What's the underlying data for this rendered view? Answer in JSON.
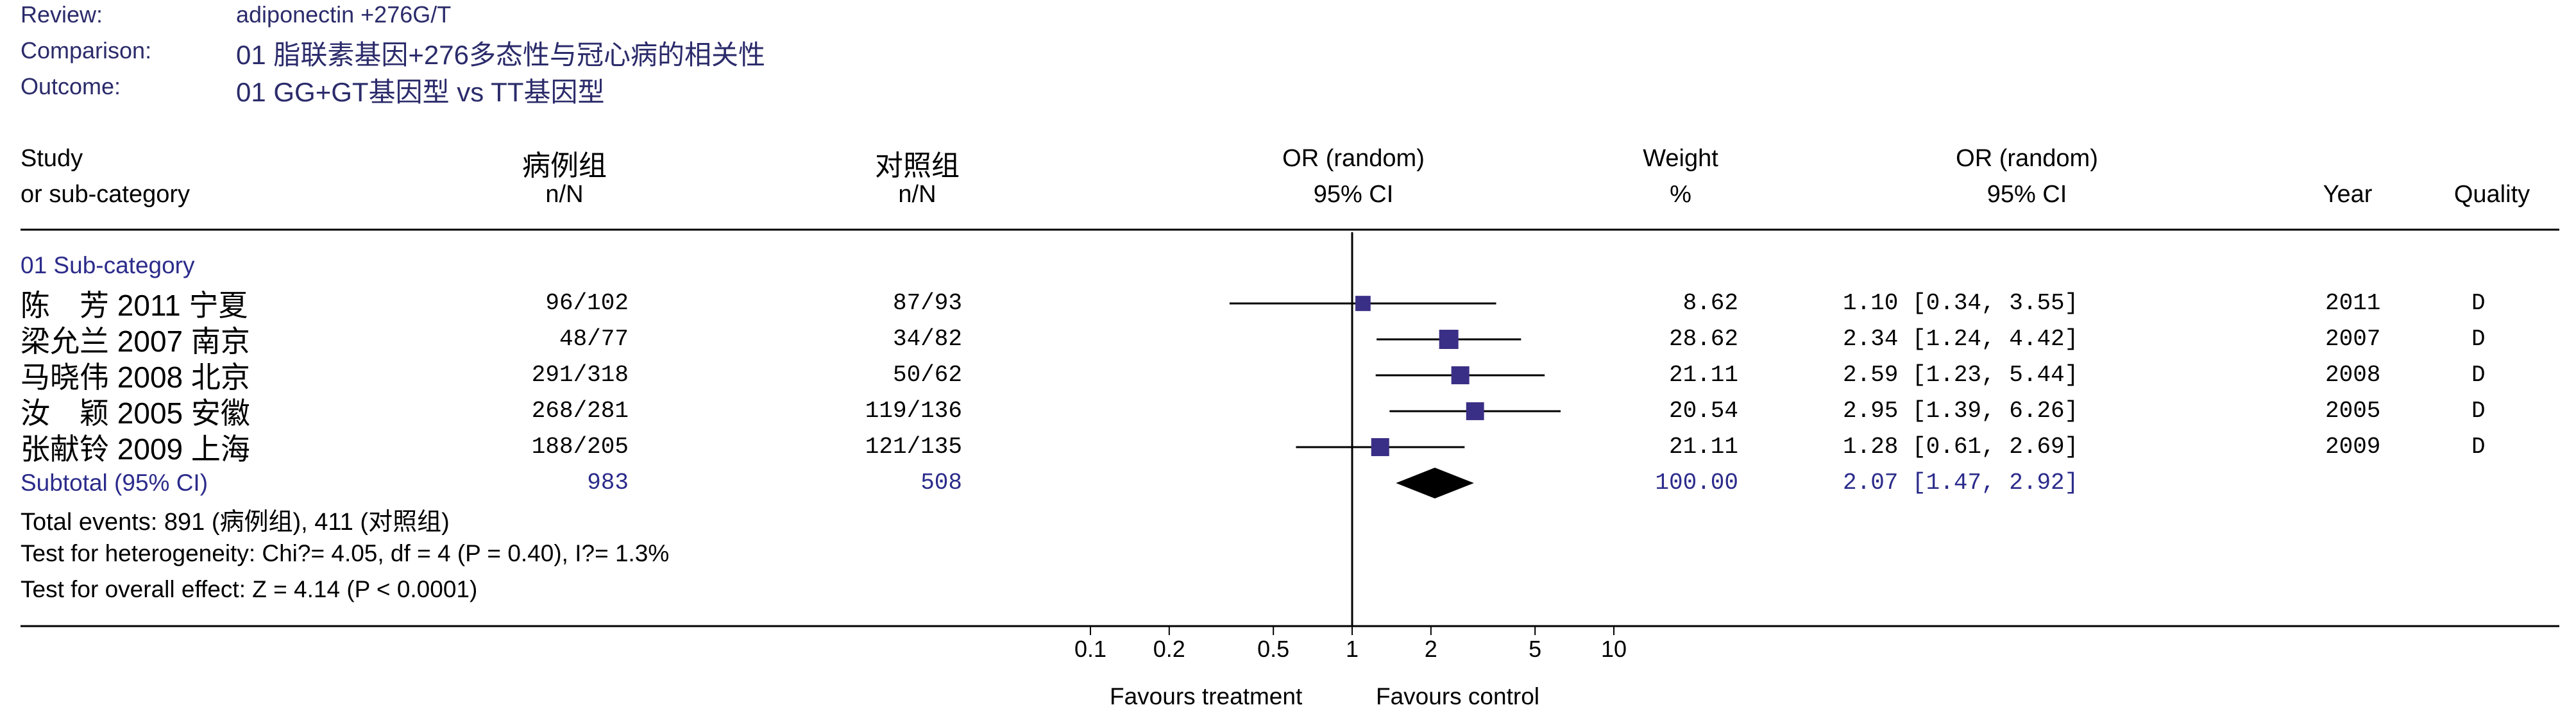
{
  "header": {
    "review_label": "Review:",
    "review_value": "adiponectin +276G/T",
    "comparison_label": "Comparison:",
    "comparison_value": "01 脂联素基因+276多态性与冠心病的相关性",
    "outcome_label": "Outcome:",
    "outcome_value": "01 GG+GT基因型  vs  TT基因型"
  },
  "columns": {
    "study_1": "Study",
    "study_2": "or sub-category",
    "case_1": "病例组",
    "case_2": "n/N",
    "control_1": "对照组",
    "control_2": "n/N",
    "or_1": "OR (random)",
    "or_2": "95% CI",
    "weight_1": "Weight",
    "weight_2": "%",
    "orci_1": "OR (random)",
    "orci_2": "95% CI",
    "year": "Year",
    "quality": "Quality"
  },
  "subcategory": "01 Sub-category",
  "subtotal": {
    "label": "Subtotal (95% CI)",
    "case": "983",
    "control": "508",
    "weight": "100.00",
    "ci_text": "2.07 [1.47, 2.92]"
  },
  "footer": {
    "total_events": "Total events: 891 (病例组), 411 (对照组)",
    "heterogeneity": "Test for heterogeneity: Chi?= 4.05, df = 4 (P = 0.40), I?= 1.3%",
    "overall": "Test for overall effect: Z = 4.14 (P < 0.0001)",
    "favours_left": "Favours treatment",
    "favours_right": "Favours control"
  },
  "chart_data": {
    "type": "forest",
    "scale": "log",
    "x_ticks": [
      0.1,
      0.2,
      0.5,
      1,
      2,
      5,
      10
    ],
    "x_tick_labels": [
      "0.1",
      "0.2",
      "0.5",
      "1",
      "2",
      "5",
      "10"
    ],
    "null_value": 1,
    "studies": [
      {
        "name": "陈　芳 2011 宁夏",
        "case": "96/102",
        "control": "87/93",
        "weight": "8.62",
        "ci_text": "1.10 [0.34, 3.55]",
        "or": 1.1,
        "lo": 0.34,
        "hi": 3.55,
        "year": "2011",
        "quality": "D"
      },
      {
        "name": "梁允兰 2007 南京",
        "case": "48/77",
        "control": "34/82",
        "weight": "28.62",
        "ci_text": "2.34 [1.24, 4.42]",
        "or": 2.34,
        "lo": 1.24,
        "hi": 4.42,
        "year": "2007",
        "quality": "D"
      },
      {
        "name": "马晓伟 2008 北京",
        "case": "291/318",
        "control": "50/62",
        "weight": "21.11",
        "ci_text": "2.59 [1.23, 5.44]",
        "or": 2.59,
        "lo": 1.23,
        "hi": 5.44,
        "year": "2008",
        "quality": "D"
      },
      {
        "name": "汝　颖 2005 安徽",
        "case": "268/281",
        "control": "119/136",
        "weight": "20.54",
        "ci_text": "2.95 [1.39, 6.26]",
        "or": 2.95,
        "lo": 1.39,
        "hi": 6.26,
        "year": "2005",
        "quality": "D"
      },
      {
        "name": "张献铃 2009 上海",
        "case": "188/205",
        "control": "121/135",
        "weight": "21.11",
        "ci_text": "1.28 [0.61, 2.69]",
        "or": 1.28,
        "lo": 0.61,
        "hi": 2.69,
        "year": "2009",
        "quality": "D"
      }
    ],
    "pooled": {
      "or": 2.07,
      "lo": 1.47,
      "hi": 2.92
    },
    "colors": {
      "box": "#3a2f86",
      "line": "#000000"
    }
  }
}
